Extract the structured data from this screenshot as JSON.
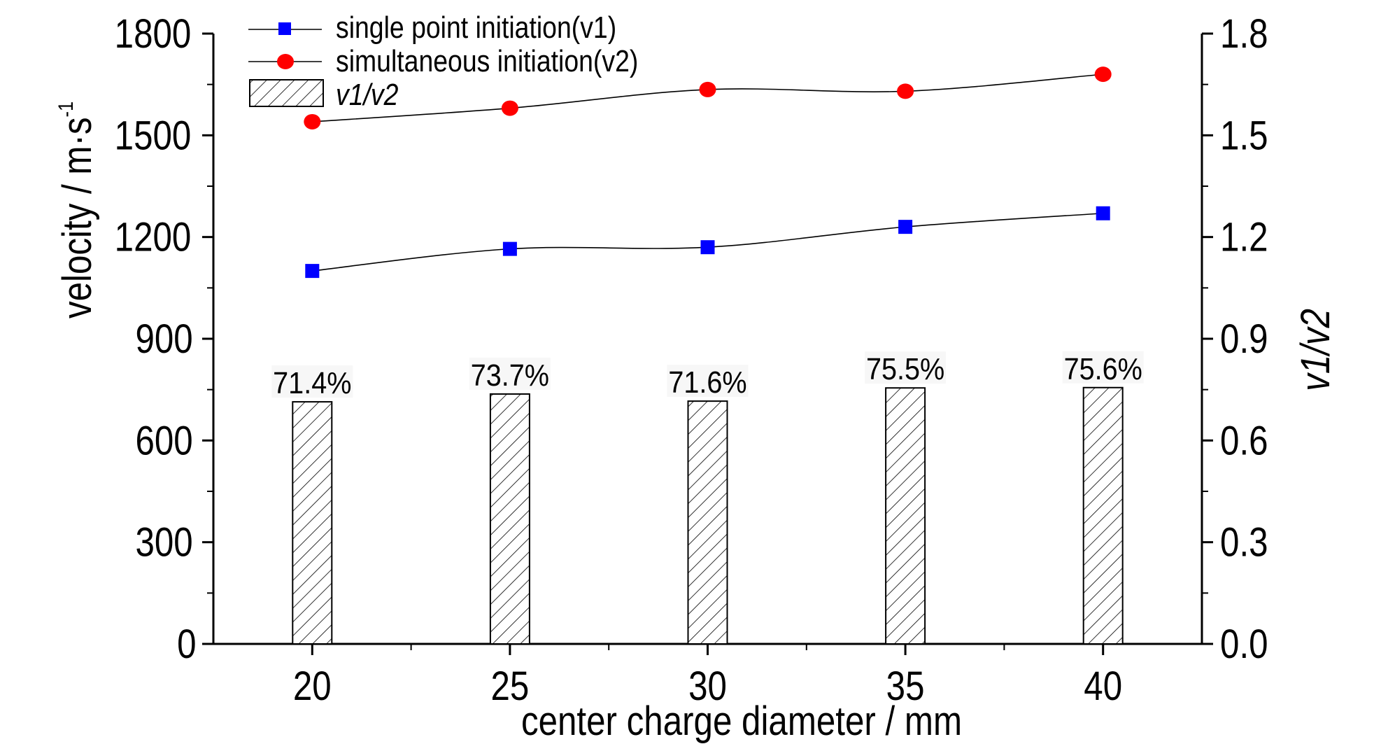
{
  "chart_data": {
    "type": "bar+line",
    "x": [
      20,
      25,
      30,
      35,
      40
    ],
    "xlabel": "center charge diameter / mm",
    "ylabel": "velocity / m·s",
    "ylabel_superscript": "-1",
    "y2label": "v1/v2",
    "ylim": [
      0,
      1800
    ],
    "y2lim": [
      0.0,
      1.8
    ],
    "xlim": [
      17.5,
      42.5
    ],
    "x_ticks": [
      20,
      25,
      30,
      35,
      40
    ],
    "y_ticks": [
      0,
      300,
      600,
      900,
      1200,
      1500,
      1800
    ],
    "y2_ticks": [
      "0.0",
      "0.3",
      "0.6",
      "0.9",
      "1.2",
      "1.5",
      "1.8"
    ],
    "series": [
      {
        "name": "single point initiation(v1)",
        "kind": "line",
        "axis": "left",
        "marker": "square",
        "color": "#0000ff",
        "values": [
          1100,
          1165,
          1170,
          1230,
          1270
        ]
      },
      {
        "name": "simultaneous initiation(v2)",
        "kind": "line",
        "axis": "left",
        "marker": "circle",
        "color": "#ff0000",
        "values": [
          1540,
          1580,
          1635,
          1630,
          1680
        ]
      },
      {
        "name": "v1/v2",
        "kind": "bar",
        "axis": "right",
        "pattern": "hatched",
        "values": [
          0.714,
          0.737,
          0.716,
          0.755,
          0.756
        ],
        "labels": [
          "71.4%",
          "73.7%",
          "71.6%",
          "75.5%",
          "75.6%"
        ]
      }
    ],
    "grid": false,
    "legend_position": "top-left"
  }
}
